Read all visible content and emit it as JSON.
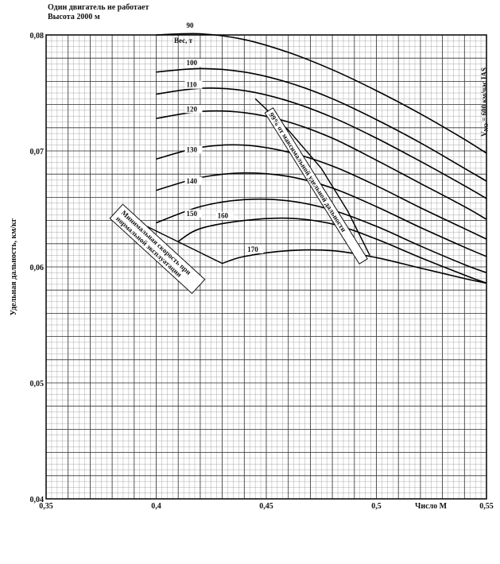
{
  "header": {
    "line1": "Один двигатель не работает",
    "line2": "Высота 2000 м"
  },
  "chart_data": {
    "type": "line",
    "xlabel": "Число М",
    "ylabel": "Удельная дальность, км/кг",
    "xlim": [
      0.35,
      0.55
    ],
    "ylim": [
      0.04,
      0.08
    ],
    "xticks": [
      "0,35",
      "0,4",
      "0,45",
      "0,5",
      "0,55"
    ],
    "yticks": [
      "0,04",
      "0,05",
      "0,06",
      "0,07",
      "0,08"
    ],
    "grid": true,
    "legend_title": "Вес, т",
    "series": [
      {
        "name": "90",
        "points": [
          [
            0.4,
            0.08
          ],
          [
            0.42,
            0.0801
          ],
          [
            0.44,
            0.0796
          ],
          [
            0.46,
            0.0785
          ],
          [
            0.48,
            0.077
          ],
          [
            0.5,
            0.0752
          ],
          [
            0.52,
            0.0732
          ],
          [
            0.54,
            0.071
          ],
          [
            0.55,
            0.0698
          ]
        ]
      },
      {
        "name": "100",
        "points": [
          [
            0.4,
            0.0768
          ],
          [
            0.42,
            0.0771
          ],
          [
            0.44,
            0.0768
          ],
          [
            0.46,
            0.0759
          ],
          [
            0.48,
            0.0745
          ],
          [
            0.5,
            0.0727
          ],
          [
            0.52,
            0.0707
          ],
          [
            0.54,
            0.0685
          ],
          [
            0.55,
            0.0674
          ]
        ]
      },
      {
        "name": "110",
        "points": [
          [
            0.4,
            0.0749
          ],
          [
            0.42,
            0.0754
          ],
          [
            0.44,
            0.0752
          ],
          [
            0.46,
            0.0743
          ],
          [
            0.48,
            0.0729
          ],
          [
            0.5,
            0.0711
          ],
          [
            0.52,
            0.0691
          ],
          [
            0.54,
            0.067
          ],
          [
            0.55,
            0.0659
          ]
        ]
      },
      {
        "name": "120",
        "points": [
          [
            0.4,
            0.0728
          ],
          [
            0.42,
            0.0734
          ],
          [
            0.44,
            0.0733
          ],
          [
            0.46,
            0.0725
          ],
          [
            0.48,
            0.0711
          ],
          [
            0.5,
            0.0692
          ],
          [
            0.52,
            0.0672
          ],
          [
            0.54,
            0.0652
          ],
          [
            0.55,
            0.0641
          ]
        ]
      },
      {
        "name": "130",
        "points": [
          [
            0.4,
            0.0693
          ],
          [
            0.42,
            0.0703
          ],
          [
            0.44,
            0.0705
          ],
          [
            0.46,
            0.0699
          ],
          [
            0.48,
            0.0687
          ],
          [
            0.5,
            0.067
          ],
          [
            0.52,
            0.0651
          ],
          [
            0.54,
            0.0633
          ],
          [
            0.55,
            0.0624
          ]
        ]
      },
      {
        "name": "140",
        "points": [
          [
            0.4,
            0.0666
          ],
          [
            0.42,
            0.0677
          ],
          [
            0.44,
            0.0681
          ],
          [
            0.46,
            0.0678
          ],
          [
            0.48,
            0.0668
          ],
          [
            0.5,
            0.0652
          ],
          [
            0.52,
            0.0634
          ],
          [
            0.54,
            0.0617
          ],
          [
            0.55,
            0.0609
          ]
        ]
      },
      {
        "name": "150",
        "points": [
          [
            0.4,
            0.0638
          ],
          [
            0.42,
            0.0652
          ],
          [
            0.44,
            0.0658
          ],
          [
            0.46,
            0.0657
          ],
          [
            0.48,
            0.0649
          ],
          [
            0.5,
            0.0635
          ],
          [
            0.52,
            0.0618
          ],
          [
            0.54,
            0.0602
          ],
          [
            0.55,
            0.0595
          ]
        ]
      },
      {
        "name": "160",
        "points": [
          [
            0.41,
            0.0622
          ],
          [
            0.42,
            0.0633
          ],
          [
            0.44,
            0.064
          ],
          [
            0.46,
            0.0642
          ],
          [
            0.48,
            0.0637
          ],
          [
            0.5,
            0.0624
          ],
          [
            0.52,
            0.0608
          ],
          [
            0.54,
            0.0593
          ],
          [
            0.55,
            0.0586
          ]
        ]
      },
      {
        "name": "170",
        "points": [
          [
            0.43,
            0.0603
          ],
          [
            0.44,
            0.0609
          ],
          [
            0.46,
            0.0614
          ],
          [
            0.48,
            0.0614
          ],
          [
            0.5,
            0.0608
          ],
          [
            0.52,
            0.0599
          ],
          [
            0.54,
            0.059
          ],
          [
            0.55,
            0.0586
          ]
        ]
      }
    ],
    "boundaries": [
      {
        "name": "Минимальная скорость при нормальной эксплуатации",
        "points": [
          [
            0.386,
            0.0644
          ],
          [
            0.43,
            0.0603
          ]
        ]
      },
      {
        "name": "99% от максимальной удельной дальности",
        "points": [
          [
            0.445,
            0.0745
          ],
          [
            0.46,
            0.0718
          ],
          [
            0.475,
            0.0685
          ],
          [
            0.487,
            0.0648
          ],
          [
            0.497,
            0.061
          ]
        ]
      }
    ],
    "annotations": [
      {
        "text": "Вес, т"
      },
      {
        "text": "V",
        "sub": "NO",
        "rest": " = 600 км/час IAS"
      }
    ]
  }
}
